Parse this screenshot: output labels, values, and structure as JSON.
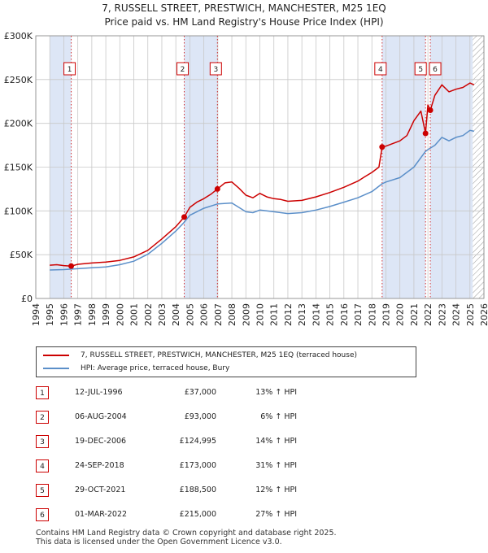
{
  "title": {
    "line1": "7, RUSSELL STREET, PRESTWICH, MANCHESTER, M25 1EQ",
    "line2": "Price paid vs. HM Land Registry's House Price Index (HPI)"
  },
  "colors": {
    "property": "#cc0000",
    "hpi": "#5b8fc9",
    "shade": "#dde6f6",
    "grid": "#c8c8c8",
    "marker_line": "#cc0000"
  },
  "chart_data": {
    "type": "line",
    "title": "Price paid vs. HM Land Registry's House Price Index (HPI)",
    "xlabel": "",
    "ylabel": "",
    "xlim": [
      1994,
      2026
    ],
    "ylim": [
      0,
      300000
    ],
    "y_ticks": [
      0,
      50000,
      100000,
      150000,
      200000,
      250000,
      300000
    ],
    "y_tick_labels": [
      "£0",
      "£50K",
      "£100K",
      "£150K",
      "£200K",
      "£250K",
      "£300K"
    ],
    "x_ticks": [
      1994,
      1995,
      1996,
      1997,
      1998,
      1999,
      2000,
      2001,
      2002,
      2003,
      2004,
      2005,
      2006,
      2007,
      2008,
      2009,
      2010,
      2011,
      2012,
      2013,
      2014,
      2015,
      2016,
      2017,
      2018,
      2019,
      2020,
      2021,
      2022,
      2023,
      2024,
      2025,
      2026
    ],
    "x_tick_labels": [
      "1994",
      "1995",
      "1996",
      "1997",
      "1998",
      "1999",
      "2000",
      "2001",
      "2002",
      "2003",
      "2004",
      "2005",
      "2006",
      "2007",
      "2008",
      "2009",
      "2010",
      "2011",
      "2012",
      "2013",
      "2014",
      "2015",
      "2016",
      "2017",
      "2018",
      "2019",
      "2020",
      "2021",
      "2022",
      "2023",
      "2024",
      "2025",
      "2026"
    ],
    "shaded_ranges": [
      [
        1995.0,
        1996.53
      ],
      [
        2004.6,
        2006.97
      ],
      [
        2018.73,
        2021.83
      ],
      [
        2022.17,
        2025.2
      ]
    ],
    "hatched_from": 2025.2,
    "series": [
      {
        "name": "7, RUSSELL STREET, PRESTWICH, MANCHESTER, M25 1EQ (terraced house)",
        "x": [
          1995.0,
          1995.5,
          1996.0,
          1996.53,
          1997.0,
          1998.0,
          1999.0,
          2000.0,
          2001.0,
          2002.0,
          2003.0,
          2004.0,
          2004.6,
          2005.0,
          2005.5,
          2006.0,
          2006.5,
          2006.97,
          2007.5,
          2008.0,
          2008.5,
          2009.0,
          2009.5,
          2010.0,
          2010.5,
          2011.0,
          2011.5,
          2012.0,
          2013.0,
          2014.0,
          2015.0,
          2016.0,
          2017.0,
          2017.5,
          2018.0,
          2018.5,
          2018.73,
          2019.0,
          2019.5,
          2020.0,
          2020.5,
          2021.0,
          2021.5,
          2021.83,
          2022.0,
          2022.17,
          2022.5,
          2023.0,
          2023.5,
          2024.0,
          2024.5,
          2025.0,
          2025.3
        ],
        "y": [
          38000,
          38500,
          37500,
          37000,
          39000,
          40500,
          41500,
          43500,
          47500,
          55000,
          68000,
          82000,
          93000,
          104000,
          110000,
          114000,
          119000,
          124995,
          132000,
          133000,
          126000,
          118000,
          115000,
          120000,
          116000,
          114000,
          113000,
          111000,
          112000,
          116000,
          121000,
          127000,
          134000,
          139000,
          144000,
          150000,
          173000,
          174000,
          177000,
          180000,
          186000,
          203000,
          214000,
          188500,
          221000,
          215000,
          232000,
          244000,
          236000,
          239000,
          241000,
          246000,
          244000
        ]
      },
      {
        "name": "HPI: Average price, terraced house, Bury",
        "x": [
          1995.0,
          1996.0,
          1997.0,
          1998.0,
          1999.0,
          2000.0,
          2001.0,
          2002.0,
          2003.0,
          2004.0,
          2004.6,
          2005.0,
          2006.0,
          2007.0,
          2008.0,
          2008.5,
          2009.0,
          2009.5,
          2010.0,
          2011.0,
          2012.0,
          2013.0,
          2014.0,
          2015.0,
          2016.0,
          2017.0,
          2018.0,
          2018.73,
          2019.0,
          2020.0,
          2021.0,
          2021.83,
          2022.0,
          2022.5,
          2023.0,
          2023.5,
          2024.0,
          2024.5,
          2025.0,
          2025.3
        ],
        "y": [
          32500,
          33000,
          34000,
          35000,
          36000,
          38500,
          42500,
          50500,
          63000,
          77000,
          87000,
          95000,
          103000,
          108000,
          109000,
          104000,
          99000,
          98000,
          101000,
          99000,
          97000,
          98000,
          101000,
          105000,
          110000,
          115000,
          122000,
          131000,
          133000,
          138000,
          150000,
          168000,
          170000,
          175000,
          184000,
          180000,
          184000,
          186000,
          192000,
          191000
        ]
      }
    ],
    "sales": [
      {
        "num": "1",
        "x": 1996.53,
        "y": 37000
      },
      {
        "num": "2",
        "x": 2004.6,
        "y": 93000
      },
      {
        "num": "3",
        "x": 2006.97,
        "y": 124995
      },
      {
        "num": "4",
        "x": 2018.73,
        "y": 173000
      },
      {
        "num": "5",
        "x": 2021.83,
        "y": 188500
      },
      {
        "num": "6",
        "x": 2022.17,
        "y": 215000
      }
    ]
  },
  "legend": {
    "property_label": "7, RUSSELL STREET, PRESTWICH, MANCHESTER, M25 1EQ (terraced house)",
    "hpi_label": "HPI: Average price, terraced house, Bury"
  },
  "sales_table": [
    {
      "num": "1",
      "date": "12-JUL-1996",
      "price": "£37,000",
      "hpi": "13% ↑ HPI"
    },
    {
      "num": "2",
      "date": "06-AUG-2004",
      "price": "£93,000",
      "hpi": "6% ↑ HPI"
    },
    {
      "num": "3",
      "date": "19-DEC-2006",
      "price": "£124,995",
      "hpi": "14% ↑ HPI"
    },
    {
      "num": "4",
      "date": "24-SEP-2018",
      "price": "£173,000",
      "hpi": "31% ↑ HPI"
    },
    {
      "num": "5",
      "date": "29-OCT-2021",
      "price": "£188,500",
      "hpi": "12% ↑ HPI"
    },
    {
      "num": "6",
      "date": "01-MAR-2022",
      "price": "£215,000",
      "hpi": "27% ↑ HPI"
    }
  ],
  "footer": {
    "line1": "Contains HM Land Registry data © Crown copyright and database right 2025.",
    "line2": "This data is licensed under the Open Government Licence v3.0."
  }
}
